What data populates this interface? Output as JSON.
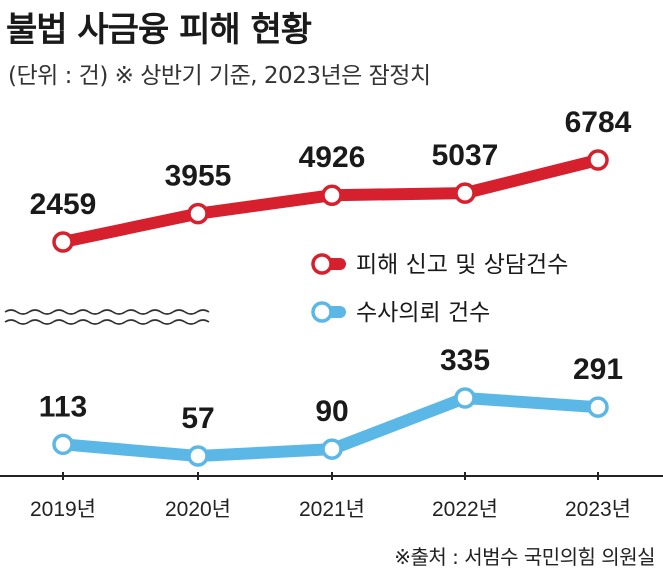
{
  "title": "불법 사금융 피해 현황",
  "subtitle": "(단위 : 건)  ※ 상반기 기준, 2023년은 잠정치",
  "source": "※출처 : 서범수 국민의힘 의원실",
  "colors": {
    "series1": "#d6202d",
    "series2": "#5bb8e6",
    "axis": "#222222"
  },
  "chart_data": {
    "type": "line",
    "title": "불법 사금융 피해 현황",
    "xlabel": "",
    "ylabel": "",
    "categories": [
      "2019년",
      "2020년",
      "2021년",
      "2022년",
      "2023년"
    ],
    "series": [
      {
        "name": "피해 신고 및 상담건수",
        "values": [
          2459,
          3955,
          4926,
          5037,
          6784
        ]
      },
      {
        "name": "수사의뢰 건수",
        "values": [
          113,
          57,
          90,
          335,
          291
        ]
      }
    ],
    "axis_break": true,
    "grid": false,
    "legend_position": "right"
  }
}
